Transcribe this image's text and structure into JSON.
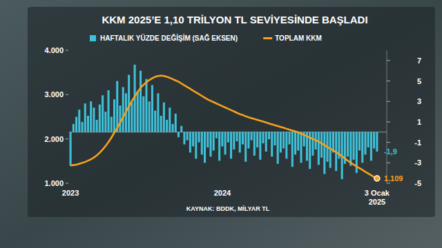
{
  "chart_data": {
    "type": "combo",
    "title": "KKM 2025’E 1,10 TRİLYON TL SEVİYESİNDE BAŞLADI",
    "annotations": [
      "KAYNAK: BDDK, MİLYAR TL"
    ],
    "categories": [
      "2023",
      null,
      null,
      null,
      null,
      null,
      null,
      null,
      null,
      null,
      null,
      null,
      null,
      null,
      null,
      null,
      null,
      null,
      null,
      null,
      null,
      null,
      null,
      null,
      null,
      null,
      null,
      null,
      null,
      null,
      null,
      null,
      null,
      null,
      null,
      null,
      null,
      null,
      null,
      null,
      null,
      null,
      null,
      null,
      null,
      null,
      null,
      null,
      null,
      null,
      null,
      null,
      "2024",
      null,
      null,
      null,
      null,
      null,
      null,
      null,
      null,
      null,
      null,
      null,
      null,
      null,
      null,
      null,
      null,
      null,
      null,
      null,
      null,
      null,
      null,
      null,
      null,
      null,
      null,
      null,
      null,
      null,
      null,
      null,
      null,
      null,
      null,
      null,
      null,
      null,
      null,
      null,
      null,
      null,
      null,
      null,
      null,
      null,
      null,
      null,
      null,
      null,
      null,
      null,
      null,
      "3 Ocak 2025"
    ],
    "series": [
      {
        "name": "HAFTALIK YÜZDE DEĞİŞİM (SAĞ EKSEN)",
        "type": "bar",
        "axis": "y2",
        "color": "#3fc1d9",
        "values": [
          -3.3,
          0.8,
          1.5,
          2.2,
          1.0,
          2.8,
          1.6,
          3.0,
          2.4,
          1.2,
          2.7,
          3.6,
          2.0,
          4.1,
          1.5,
          3.2,
          5.0,
          2.6,
          4.4,
          3.8,
          5.6,
          2.9,
          6.6,
          4.0,
          6.0,
          3.5,
          5.2,
          3.0,
          4.6,
          2.1,
          3.8,
          1.6,
          2.9,
          1.2,
          2.4,
          0.8,
          1.8,
          -0.5,
          0.6,
          -1.2,
          -0.8,
          -2.0,
          -1.4,
          -2.6,
          -1.0,
          -2.2,
          -3.0,
          -1.5,
          -2.4,
          -1.8,
          -0.6,
          -2.8,
          -1.4,
          -2.2,
          -1.0,
          -2.6,
          -1.7,
          -0.9,
          -2.0,
          -1.2,
          -2.9,
          -1.6,
          -0.8,
          -2.3,
          -1.5,
          -2.7,
          -1.1,
          -1.9,
          -0.7,
          -2.4,
          -1.3,
          -3.1,
          -2.0,
          -1.6,
          -2.6,
          -1.2,
          -3.4,
          -2.2,
          -1.8,
          -3.0,
          -1.4,
          -2.8,
          -3.6,
          -2.3,
          -1.7,
          -3.2,
          -2.5,
          -4.1,
          -2.9,
          -3.5,
          -2.0,
          -3.8,
          -2.6,
          -4.6,
          -3.1,
          -2.4,
          -3.3,
          -2.7,
          -4.0,
          -1.8,
          -3.0,
          -2.2,
          -1.5,
          -2.8,
          -1.6,
          -1.9
        ],
        "value_labels": [
          null,
          null,
          null,
          null,
          null,
          null,
          null,
          null,
          null,
          null,
          null,
          null,
          null,
          null,
          null,
          null,
          null,
          null,
          null,
          null,
          null,
          null,
          null,
          null,
          null,
          null,
          null,
          null,
          null,
          null,
          null,
          null,
          null,
          null,
          null,
          null,
          null,
          null,
          null,
          null,
          null,
          null,
          null,
          null,
          null,
          null,
          null,
          null,
          null,
          null,
          null,
          null,
          null,
          null,
          null,
          null,
          null,
          null,
          null,
          null,
          null,
          null,
          null,
          null,
          null,
          null,
          null,
          null,
          null,
          null,
          null,
          null,
          null,
          null,
          null,
          null,
          null,
          null,
          null,
          null,
          null,
          null,
          null,
          null,
          null,
          null,
          null,
          null,
          null,
          null,
          null,
          null,
          null,
          null,
          null,
          null,
          null,
          null,
          null,
          null,
          null,
          null,
          null,
          null,
          null,
          "-1,9"
        ]
      },
      {
        "name": "TOPLAM KKM",
        "type": "line",
        "color": "#f7a21b",
        "marker": "none",
        "line_style": "solid",
        "values": [
          1400,
          1410,
          1420,
          1440,
          1460,
          1480,
          1510,
          1540,
          1580,
          1630,
          1690,
          1760,
          1840,
          1930,
          2030,
          2140,
          2250,
          2370,
          2490,
          2610,
          2730,
          2850,
          2960,
          3060,
          3150,
          3220,
          3280,
          3330,
          3370,
          3400,
          3420,
          3430,
          3420,
          3400,
          3380,
          3350,
          3320,
          3290,
          3250,
          3210,
          3170,
          3130,
          3090,
          3050,
          3010,
          2970,
          2930,
          2890,
          2860,
          2830,
          2800,
          2770,
          2740,
          2710,
          2680,
          2650,
          2620,
          2590,
          2560,
          2540,
          2510,
          2490,
          2470,
          2450,
          2430,
          2410,
          2390,
          2370,
          2350,
          2330,
          2310,
          2290,
          2270,
          2250,
          2230,
          2210,
          2190,
          2170,
          2150,
          2120,
          2090,
          2060,
          2030,
          2000,
          1970,
          1940,
          1900,
          1860,
          1820,
          1780,
          1740,
          1700,
          1660,
          1610,
          1560,
          1510,
          1460,
          1420,
          1380,
          1340,
          1300,
          1260,
          1220,
          1180,
          1140,
          1109
        ],
        "value_labels": [
          null,
          null,
          null,
          null,
          null,
          null,
          null,
          null,
          null,
          null,
          null,
          null,
          null,
          null,
          null,
          null,
          null,
          null,
          null,
          null,
          null,
          null,
          null,
          null,
          null,
          null,
          null,
          null,
          null,
          null,
          null,
          null,
          null,
          null,
          null,
          null,
          null,
          null,
          null,
          null,
          null,
          null,
          null,
          null,
          null,
          null,
          null,
          null,
          null,
          null,
          null,
          null,
          null,
          null,
          null,
          null,
          null,
          null,
          null,
          null,
          null,
          null,
          null,
          null,
          null,
          null,
          null,
          null,
          null,
          null,
          null,
          null,
          null,
          null,
          null,
          null,
          null,
          null,
          null,
          null,
          null,
          null,
          null,
          null,
          null,
          null,
          null,
          null,
          null,
          null,
          null,
          null,
          null,
          null,
          null,
          null,
          null,
          null,
          null,
          null,
          null,
          null,
          null,
          null,
          null,
          "1.109"
        ]
      }
    ],
    "ylim": [
      1000,
      4000
    ],
    "yticks": [
      {
        "value": 1000,
        "label": "1.000"
      },
      {
        "value": 2000,
        "label": "2.000"
      },
      {
        "value": 3000,
        "label": "3.000"
      },
      {
        "value": 4000,
        "label": "4.000"
      }
    ],
    "y2lim": [
      -5,
      8
    ],
    "y2ticks": [
      -5,
      -3,
      -1,
      1,
      3,
      5,
      7
    ],
    "grid": false,
    "legend": "top"
  }
}
